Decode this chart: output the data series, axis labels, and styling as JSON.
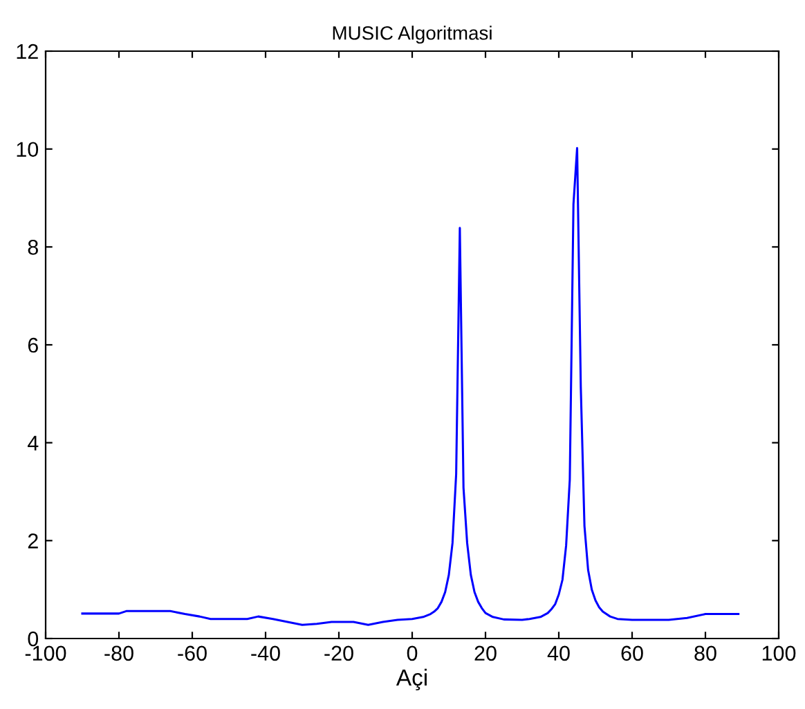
{
  "chart_data": {
    "type": "line",
    "title": "MUSIC Algoritmasi",
    "xlabel": "Açi",
    "x": [
      -90,
      -80,
      -78,
      -66,
      -62,
      -58,
      -55,
      -45,
      -42,
      -38,
      -34,
      -30,
      -26,
      -22,
      -16,
      -12,
      -8,
      -4,
      0,
      3,
      5,
      6,
      7,
      8,
      9,
      10,
      11,
      12,
      13,
      14,
      15,
      16,
      17,
      18,
      19,
      20,
      22,
      25,
      30,
      32,
      35,
      37,
      38,
      39,
      40,
      41,
      42,
      43,
      44,
      45,
      46,
      47,
      48,
      49,
      50,
      51,
      52,
      54,
      56,
      60,
      70,
      75,
      80,
      89
    ],
    "series": [
      {
        "color": "#0000ff",
        "values": [
          0.51,
          0.51,
          0.56,
          0.56,
          0.5,
          0.45,
          0.4,
          0.4,
          0.45,
          0.4,
          0.34,
          0.28,
          0.3,
          0.34,
          0.34,
          0.28,
          0.34,
          0.38,
          0.4,
          0.44,
          0.5,
          0.55,
          0.62,
          0.75,
          0.95,
          1.3,
          1.95,
          3.36,
          8.39,
          3.08,
          1.95,
          1.3,
          0.95,
          0.75,
          0.62,
          0.52,
          0.44,
          0.39,
          0.38,
          0.4,
          0.44,
          0.52,
          0.6,
          0.7,
          0.9,
          1.2,
          1.9,
          3.25,
          8.87,
          10.02,
          5.14,
          2.3,
          1.4,
          1.0,
          0.78,
          0.64,
          0.55,
          0.45,
          0.4,
          0.38,
          0.38,
          0.42,
          0.5,
          0.5
        ]
      }
    ],
    "xlim": [
      -100,
      100
    ],
    "xticks": [
      -100,
      -80,
      -60,
      -40,
      -20,
      0,
      20,
      40,
      60,
      80,
      100
    ],
    "ylim": [
      0,
      12
    ],
    "yticks": [
      0,
      2,
      4,
      6,
      8,
      10,
      12
    ],
    "grid": false,
    "legend": false
  }
}
